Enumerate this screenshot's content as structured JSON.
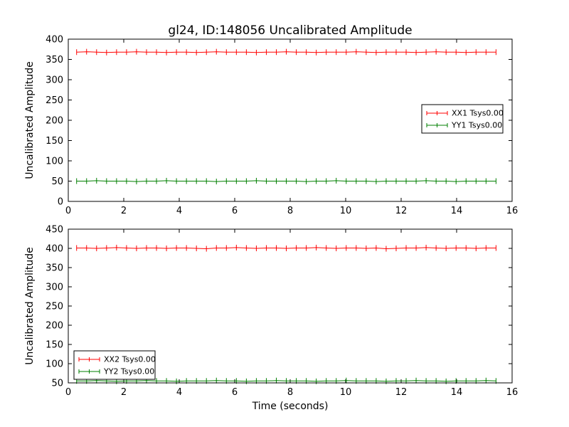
{
  "figure": {
    "title": "gl24, ID:148056 Uncalibrated Amplitude",
    "background": "#ffffff",
    "axis_color": "#000000"
  },
  "chart_data": [
    {
      "type": "line",
      "title": "",
      "xlabel": "",
      "ylabel": "Uncalibrated Amplitude",
      "xlim": [
        0,
        16
      ],
      "ylim": [
        0,
        400
      ],
      "xticks": [
        0,
        2,
        4,
        6,
        8,
        10,
        12,
        14,
        16
      ],
      "yticks": [
        0,
        50,
        100,
        150,
        200,
        250,
        300,
        350,
        400
      ],
      "grid": false,
      "legend_position": "right",
      "marker": "errorbar-tick",
      "x": [
        0.3,
        0.66,
        1.02,
        1.38,
        1.74,
        2.1,
        2.46,
        2.82,
        3.18,
        3.54,
        3.9,
        4.26,
        4.62,
        4.98,
        5.34,
        5.7,
        6.06,
        6.42,
        6.78,
        7.14,
        7.5,
        7.86,
        8.22,
        8.58,
        8.94,
        9.3,
        9.66,
        10.02,
        10.38,
        10.74,
        11.1,
        11.46,
        11.82,
        12.18,
        12.54,
        12.9,
        13.26,
        13.62,
        13.98,
        14.34,
        14.7,
        15.06,
        15.42
      ],
      "series": [
        {
          "name": "XX1 Tsys0.00",
          "color": "#ff0000",
          "values": [
            368,
            369,
            368,
            367,
            368,
            368,
            369,
            368,
            368,
            367,
            368,
            368,
            367,
            368,
            369,
            368,
            368,
            368,
            367,
            368,
            368,
            369,
            368,
            368,
            367,
            368,
            368,
            368,
            369,
            368,
            367,
            368,
            368,
            368,
            367,
            368,
            369,
            368,
            368,
            367,
            368,
            368,
            368
          ]
        },
        {
          "name": "YY1 Tsys0.00",
          "color": "#007f00",
          "values": [
            50,
            50,
            51,
            50,
            50,
            50,
            49,
            50,
            50,
            51,
            50,
            50,
            50,
            50,
            49,
            50,
            50,
            50,
            51,
            50,
            50,
            50,
            50,
            49,
            50,
            50,
            51,
            50,
            50,
            50,
            49,
            50,
            50,
            50,
            50,
            51,
            50,
            50,
            49,
            50,
            50,
            50,
            50
          ]
        }
      ]
    },
    {
      "type": "line",
      "title": "",
      "xlabel": "Time (seconds)",
      "ylabel": "Uncalibrated Amplitude",
      "xlim": [
        0,
        16
      ],
      "ylim": [
        50,
        450
      ],
      "xticks": [
        0,
        2,
        4,
        6,
        8,
        10,
        12,
        14,
        16
      ],
      "yticks": [
        50,
        100,
        150,
        200,
        250,
        300,
        350,
        400,
        450
      ],
      "grid": false,
      "legend_position": "lower-left",
      "marker": "errorbar-tick",
      "x": [
        0.3,
        0.66,
        1.02,
        1.38,
        1.74,
        2.1,
        2.46,
        2.82,
        3.18,
        3.54,
        3.9,
        4.26,
        4.62,
        4.98,
        5.34,
        5.7,
        6.06,
        6.42,
        6.78,
        7.14,
        7.5,
        7.86,
        8.22,
        8.58,
        8.94,
        9.3,
        9.66,
        10.02,
        10.38,
        10.74,
        11.1,
        11.46,
        11.82,
        12.18,
        12.54,
        12.9,
        13.26,
        13.62,
        13.98,
        14.34,
        14.7,
        15.06,
        15.42
      ],
      "series": [
        {
          "name": "XX2 Tsys0.00",
          "color": "#ff0000",
          "values": [
            401,
            401,
            400,
            401,
            402,
            401,
            400,
            401,
            401,
            400,
            401,
            401,
            400,
            399,
            401,
            401,
            402,
            401,
            400,
            401,
            401,
            400,
            401,
            401,
            402,
            401,
            400,
            401,
            401,
            400,
            401,
            399,
            400,
            401,
            401,
            402,
            401,
            400,
            401,
            401,
            400,
            401,
            401
          ]
        },
        {
          "name": "YY2 Tsys0.00",
          "color": "#007f00",
          "values": [
            55,
            55,
            56,
            55,
            54,
            55,
            55,
            56,
            55,
            55,
            54,
            55,
            55,
            55,
            56,
            55,
            55,
            54,
            55,
            55,
            56,
            55,
            55,
            55,
            54,
            55,
            55,
            56,
            55,
            55,
            55,
            54,
            55,
            55,
            56,
            55,
            55,
            54,
            55,
            55,
            55,
            56,
            55
          ]
        }
      ]
    }
  ]
}
